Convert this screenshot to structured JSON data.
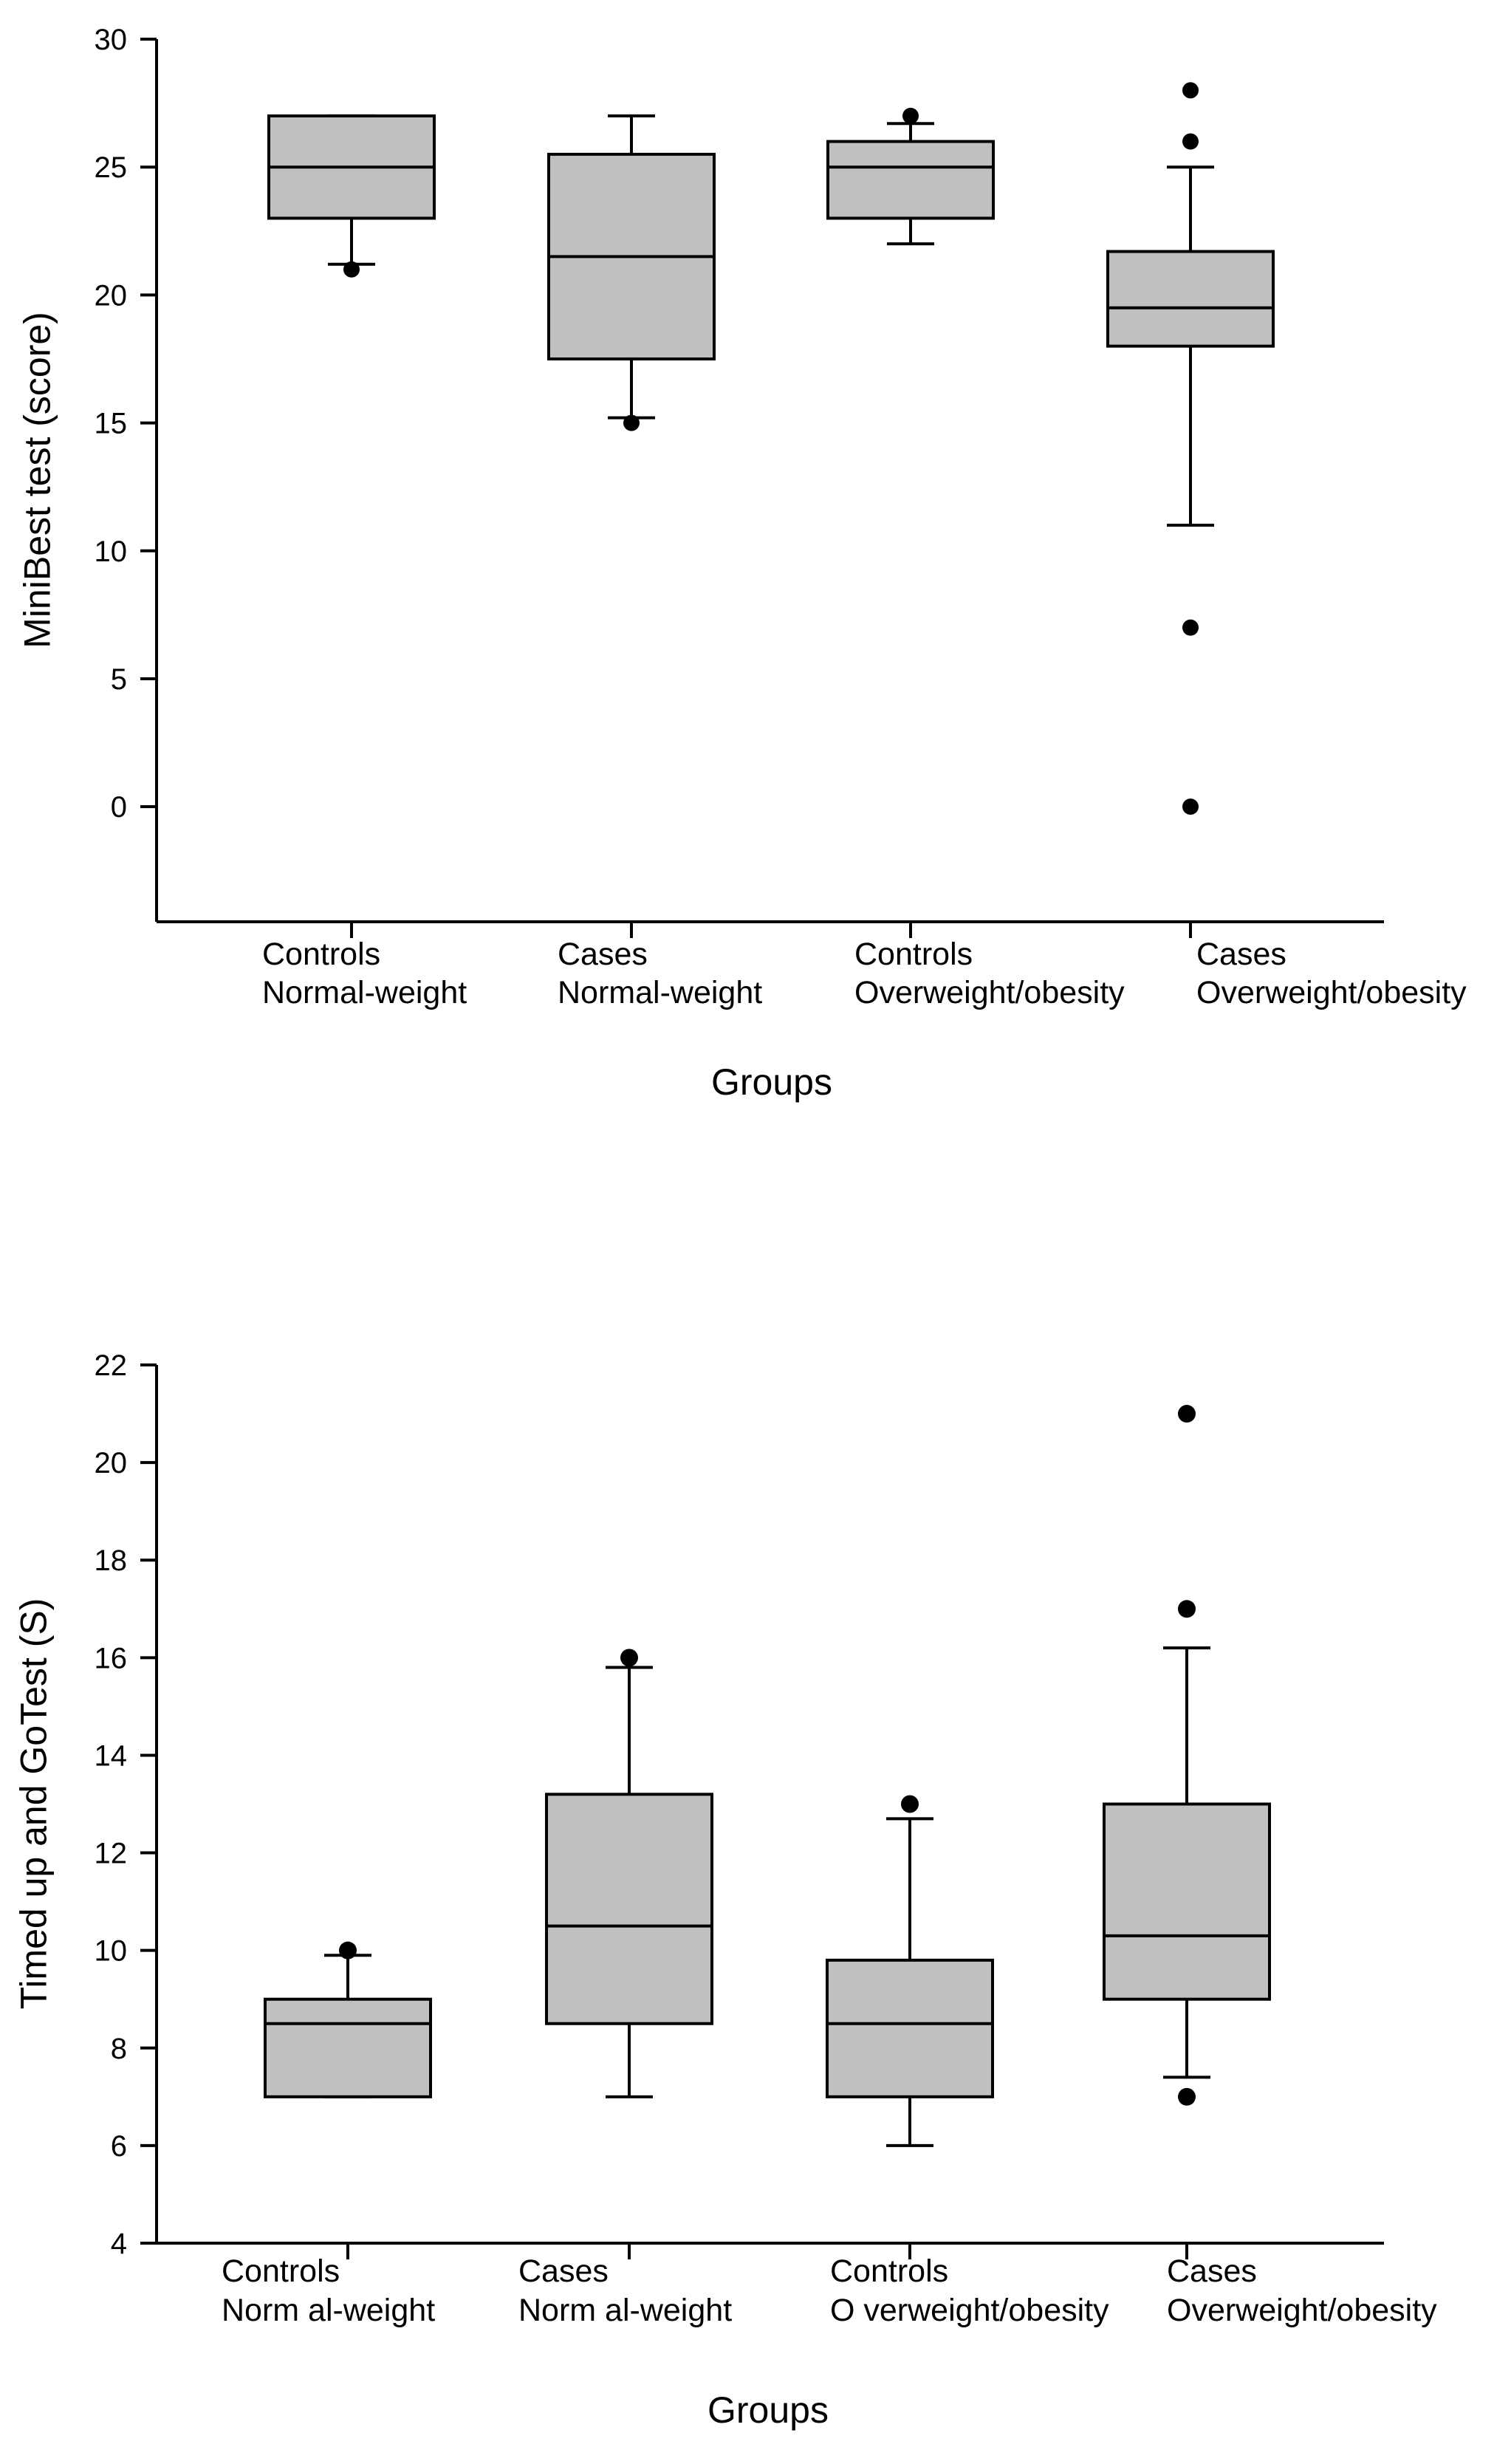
{
  "chart_data": [
    {
      "type": "box",
      "xlabel": "Groups",
      "ylabel": "MiniBest test (score)",
      "ylim": [
        -4.5,
        30
      ],
      "yticks": [
        0,
        5,
        10,
        15,
        20,
        25,
        30
      ],
      "groups": [
        {
          "label_lines": [
            "Controls",
            "Normal-weight"
          ],
          "whisker_low": 21.2,
          "q1": 23,
          "median": 25,
          "q3": 27,
          "whisker_high": 27,
          "outliers": [
            21
          ]
        },
        {
          "label_lines": [
            "Cases",
            "Normal-weight"
          ],
          "whisker_low": 15.2,
          "q1": 17.5,
          "median": 21.5,
          "q3": 25.5,
          "whisker_high": 27,
          "outliers": [
            15
          ]
        },
        {
          "label_lines": [
            "Controls",
            "Overweight/obesity"
          ],
          "whisker_low": 22,
          "q1": 23,
          "median": 25,
          "q3": 26,
          "whisker_high": 26.7,
          "outliers": [
            27
          ]
        },
        {
          "label_lines": [
            "Cases",
            "Overweight/obesity"
          ],
          "whisker_low": 11,
          "q1": 18,
          "median": 19.5,
          "q3": 21.7,
          "whisker_high": 25,
          "outliers": [
            28,
            26,
            7,
            0
          ]
        }
      ]
    },
    {
      "type": "box",
      "xlabel": "Groups",
      "ylabel": "Timed up and GoTest (S)",
      "ylim": [
        4,
        22
      ],
      "yticks": [
        4,
        6,
        8,
        10,
        12,
        14,
        16,
        18,
        20,
        22
      ],
      "groups": [
        {
          "label_lines": [
            "Controls",
            "Norm al-weight"
          ],
          "whisker_low": 7,
          "q1": 7,
          "median": 8.5,
          "q3": 9,
          "whisker_high": 9.9,
          "outliers": [
            10
          ]
        },
        {
          "label_lines": [
            "Cases",
            "Norm al-weight"
          ],
          "whisker_low": 7,
          "q1": 8.5,
          "median": 10.5,
          "q3": 13.2,
          "whisker_high": 15.8,
          "outliers": [
            16
          ]
        },
        {
          "label_lines": [
            "Controls",
            "O verweight/obesity"
          ],
          "whisker_low": 6,
          "q1": 7,
          "median": 8.5,
          "q3": 9.8,
          "whisker_high": 12.7,
          "outliers": [
            13
          ]
        },
        {
          "label_lines": [
            "Cases",
            "Overweight/obesity"
          ],
          "whisker_low": 7.4,
          "q1": 9,
          "median": 10.3,
          "q3": 13,
          "whisker_high": 16.2,
          "outliers": [
            21,
            17,
            7
          ]
        }
      ]
    }
  ]
}
